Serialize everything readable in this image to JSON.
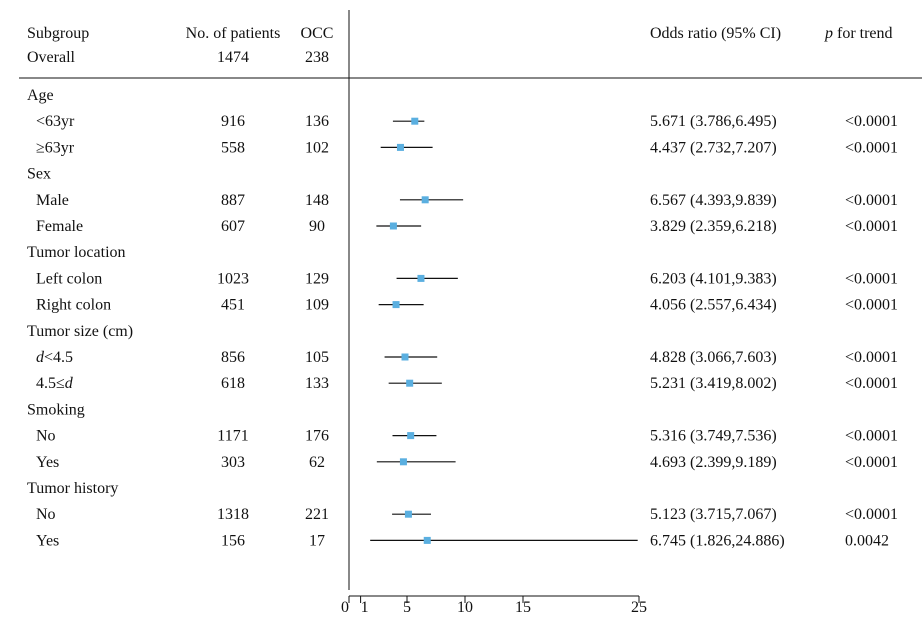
{
  "chart_data": {
    "type": "forest",
    "columns": {
      "subgroup": "Subgroup",
      "n_patients": "No. of patients",
      "occ": "OCC",
      "or": "Odds ratio (95% CI)",
      "p_prefix": "p",
      "p_suffix": " for trend"
    },
    "overall": {
      "label": "Overall",
      "n": "1474",
      "occ": "238"
    },
    "groups": [
      {
        "title": "Age",
        "rows": [
          {
            "label": "<63yr",
            "n": "916",
            "occ": "136",
            "or": 5.671,
            "lo": 3.786,
            "hi": 6.495,
            "or_text": "5.671 (3.786,6.495)",
            "p": "<0.0001"
          },
          {
            "label": "≥63yr",
            "n": "558",
            "occ": "102",
            "or": 4.437,
            "lo": 2.732,
            "hi": 7.207,
            "or_text": "4.437 (2.732,7.207)",
            "p": "<0.0001"
          }
        ]
      },
      {
        "title": "Sex",
        "rows": [
          {
            "label": "Male",
            "n": "887",
            "occ": "148",
            "or": 6.567,
            "lo": 4.393,
            "hi": 9.839,
            "or_text": "6.567 (4.393,9.839)",
            "p": "<0.0001"
          },
          {
            "label": "Female",
            "n": "607",
            "occ": "90",
            "or": 3.829,
            "lo": 2.359,
            "hi": 6.218,
            "or_text": "3.829 (2.359,6.218)",
            "p": "<0.0001"
          }
        ]
      },
      {
        "title": "Tumor location",
        "rows": [
          {
            "label": "Left colon",
            "n": "1023",
            "occ": "129",
            "or": 6.203,
            "lo": 4.101,
            "hi": 9.383,
            "or_text": "6.203 (4.101,9.383)",
            "p": "<0.0001"
          },
          {
            "label": "Right colon",
            "n": "451",
            "occ": "109",
            "or": 4.056,
            "lo": 2.557,
            "hi": 6.434,
            "or_text": "4.056 (2.557,6.434)",
            "p": "<0.0001"
          }
        ]
      },
      {
        "title": "Tumor size (cm)",
        "rows": [
          {
            "label_it": "d",
            "label_rest": "<4.5",
            "n": "856",
            "occ": "105",
            "or": 4.828,
            "lo": 3.066,
            "hi": 7.603,
            "or_text": "4.828 (3.066,7.603)",
            "p": "<0.0001"
          },
          {
            "label_pre": "4.5≤",
            "label_it": "d",
            "n": "618",
            "occ": "133",
            "or": 5.231,
            "lo": 3.419,
            "hi": 8.002,
            "or_text": "5.231 (3.419,8.002)",
            "p": "<0.0001"
          }
        ]
      },
      {
        "title": "Smoking",
        "rows": [
          {
            "label": "No",
            "n": "1171",
            "occ": "176",
            "or": 5.316,
            "lo": 3.749,
            "hi": 7.536,
            "or_text": "5.316 (3.749,7.536)",
            "p": "<0.0001"
          },
          {
            "label": "Yes",
            "n": "303",
            "occ": "62",
            "or": 4.693,
            "lo": 2.399,
            "hi": 9.189,
            "or_text": "4.693 (2.399,9.189)",
            "p": "<0.0001"
          }
        ]
      },
      {
        "title": "Tumor history",
        "rows": [
          {
            "label": "No",
            "n": "1318",
            "occ": "221",
            "or": 5.123,
            "lo": 3.715,
            "hi": 7.067,
            "or_text": "5.123 (3.715,7.067)",
            "p": "<0.0001"
          },
          {
            "label": "Yes",
            "n": "156",
            "occ": "17",
            "or": 6.745,
            "lo": 1.826,
            "hi": 24.886,
            "or_text": "6.745 (1.826,24.886)",
            "p": "0.0042"
          }
        ]
      }
    ],
    "x_axis": {
      "ticks": [
        0,
        1,
        5,
        10,
        15,
        25
      ],
      "tick_labels": [
        "0",
        "1",
        "5",
        "10",
        "15",
        "25"
      ],
      "range": [
        0,
        25
      ]
    },
    "marker_color": "#5aafe0",
    "line_color": "#111111"
  }
}
